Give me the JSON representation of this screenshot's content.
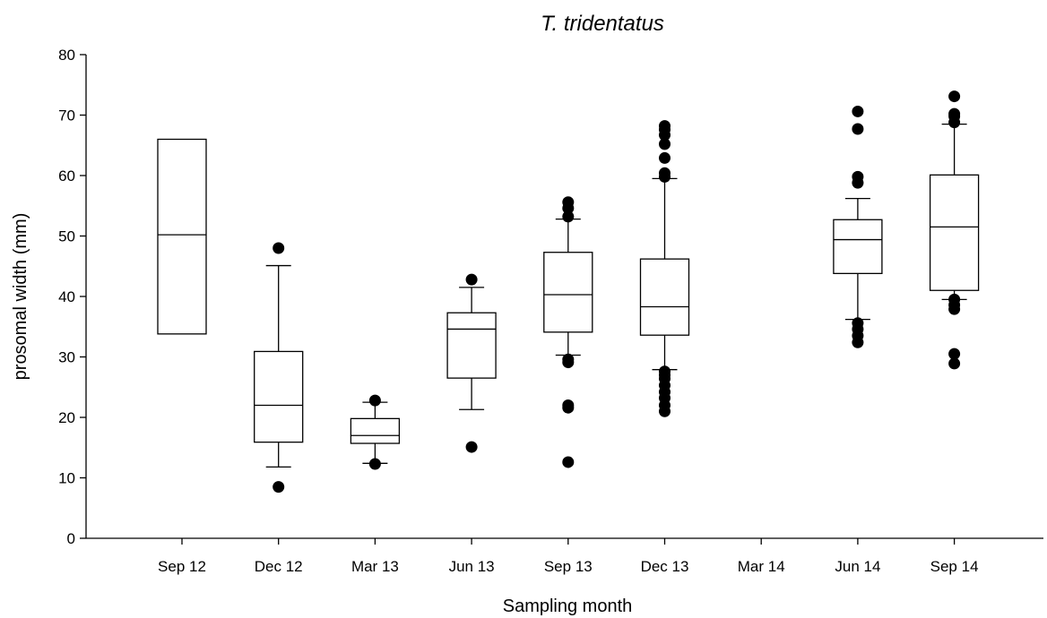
{
  "chart_data": {
    "type": "box",
    "title": "T. tridentatus",
    "xlabel": "Sampling month",
    "ylabel": "prosomal width (mm)",
    "ylim": [
      0,
      80
    ],
    "yticks": [
      0,
      10,
      20,
      30,
      40,
      50,
      60,
      70,
      80
    ],
    "grid": false,
    "categories": [
      "Sep 12",
      "Dec 12",
      "Mar 13",
      "Jun 13",
      "Sep 13",
      "Dec 13",
      "Mar 14",
      "Jun 14",
      "Sep 14"
    ],
    "boxes": [
      {
        "category": "Sep 12",
        "q1": 33.8,
        "median": 50.2,
        "q3": 66.0
      },
      {
        "category": "Dec 12",
        "whisker_low": 11.8,
        "q1": 15.9,
        "median": 22.0,
        "q3": 30.9,
        "whisker_high": 45.1,
        "outliers": [
          8.5,
          48.0
        ]
      },
      {
        "category": "Mar 13",
        "whisker_low": 12.4,
        "q1": 15.7,
        "median": 17.0,
        "q3": 19.8,
        "whisker_high": 22.5,
        "outliers": [
          12.3,
          22.8
        ]
      },
      {
        "category": "Jun 13",
        "whisker_low": 21.3,
        "q1": 26.5,
        "median": 34.6,
        "q3": 37.3,
        "whisker_high": 41.5,
        "outliers": [
          15.1,
          42.8
        ]
      },
      {
        "category": "Sep 13",
        "whisker_low": 30.3,
        "q1": 34.1,
        "median": 40.3,
        "q3": 47.3,
        "whisker_high": 52.8,
        "outliers": [
          12.6,
          21.6,
          22.0,
          29.1,
          29.6,
          53.2,
          54.6,
          55.6
        ]
      },
      {
        "category": "Dec 13",
        "whisker_low": 27.9,
        "q1": 33.6,
        "median": 38.3,
        "q3": 46.2,
        "whisker_high": 59.5,
        "outliers": [
          21.0,
          22.0,
          23.2,
          24.2,
          25.3,
          26.4,
          27.0,
          27.6,
          59.8,
          60.4,
          62.9,
          65.2,
          66.7,
          67.6,
          68.2
        ]
      },
      {
        "category": "Mar 14"
      },
      {
        "category": "Jun 14",
        "whisker_low": 36.2,
        "q1": 43.8,
        "median": 49.4,
        "q3": 52.7,
        "whisker_high": 56.2,
        "outliers": [
          32.4,
          33.5,
          34.6,
          35.6,
          58.8,
          59.8,
          67.7,
          70.6
        ]
      },
      {
        "category": "Sep 14",
        "whisker_low": 39.5,
        "q1": 41.0,
        "median": 51.5,
        "q3": 60.1,
        "whisker_high": 68.5,
        "outliers": [
          28.9,
          30.5,
          37.9,
          38.6,
          39.5,
          68.8,
          69.8,
          70.2,
          73.1
        ]
      }
    ]
  }
}
